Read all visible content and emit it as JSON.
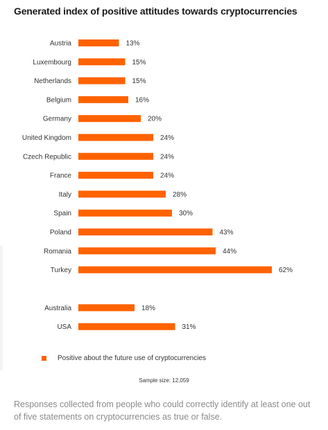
{
  "title": "Generated index of positive attitudes towards cryptocurrencies",
  "chart_data": {
    "type": "bar",
    "orientation": "horizontal",
    "categories": [
      "Austria",
      "Luxembourg",
      "Netherlands",
      "Belgium",
      "Germany",
      "United Kingdom",
      "Czech Republic",
      "France",
      "Italy",
      "Spain",
      "Poland",
      "Romania",
      "Turkey",
      "Australia",
      "USA"
    ],
    "values": [
      13,
      15,
      15,
      16,
      20,
      24,
      24,
      24,
      28,
      30,
      43,
      44,
      62,
      18,
      31
    ],
    "data_labels": [
      "13%",
      "15%",
      "15%",
      "16%",
      "20%",
      "24%",
      "24%",
      "24%",
      "28%",
      "30%",
      "43%",
      "44%",
      "62%",
      "18%",
      "31%"
    ],
    "unit": "%",
    "color": "#ff6200",
    "grid": false,
    "legend": {
      "placement": "bottom-left",
      "entries": [
        "Positive about the future use of cryptocurrencies"
      ]
    }
  },
  "legend_label": "Positive about the future use of cryptocurrencies",
  "sample_size": "Sample size: 12,059",
  "footnote": "Responses collected from people who could correctly identify at least one out of five statements on cryptocurrencies as true or false."
}
